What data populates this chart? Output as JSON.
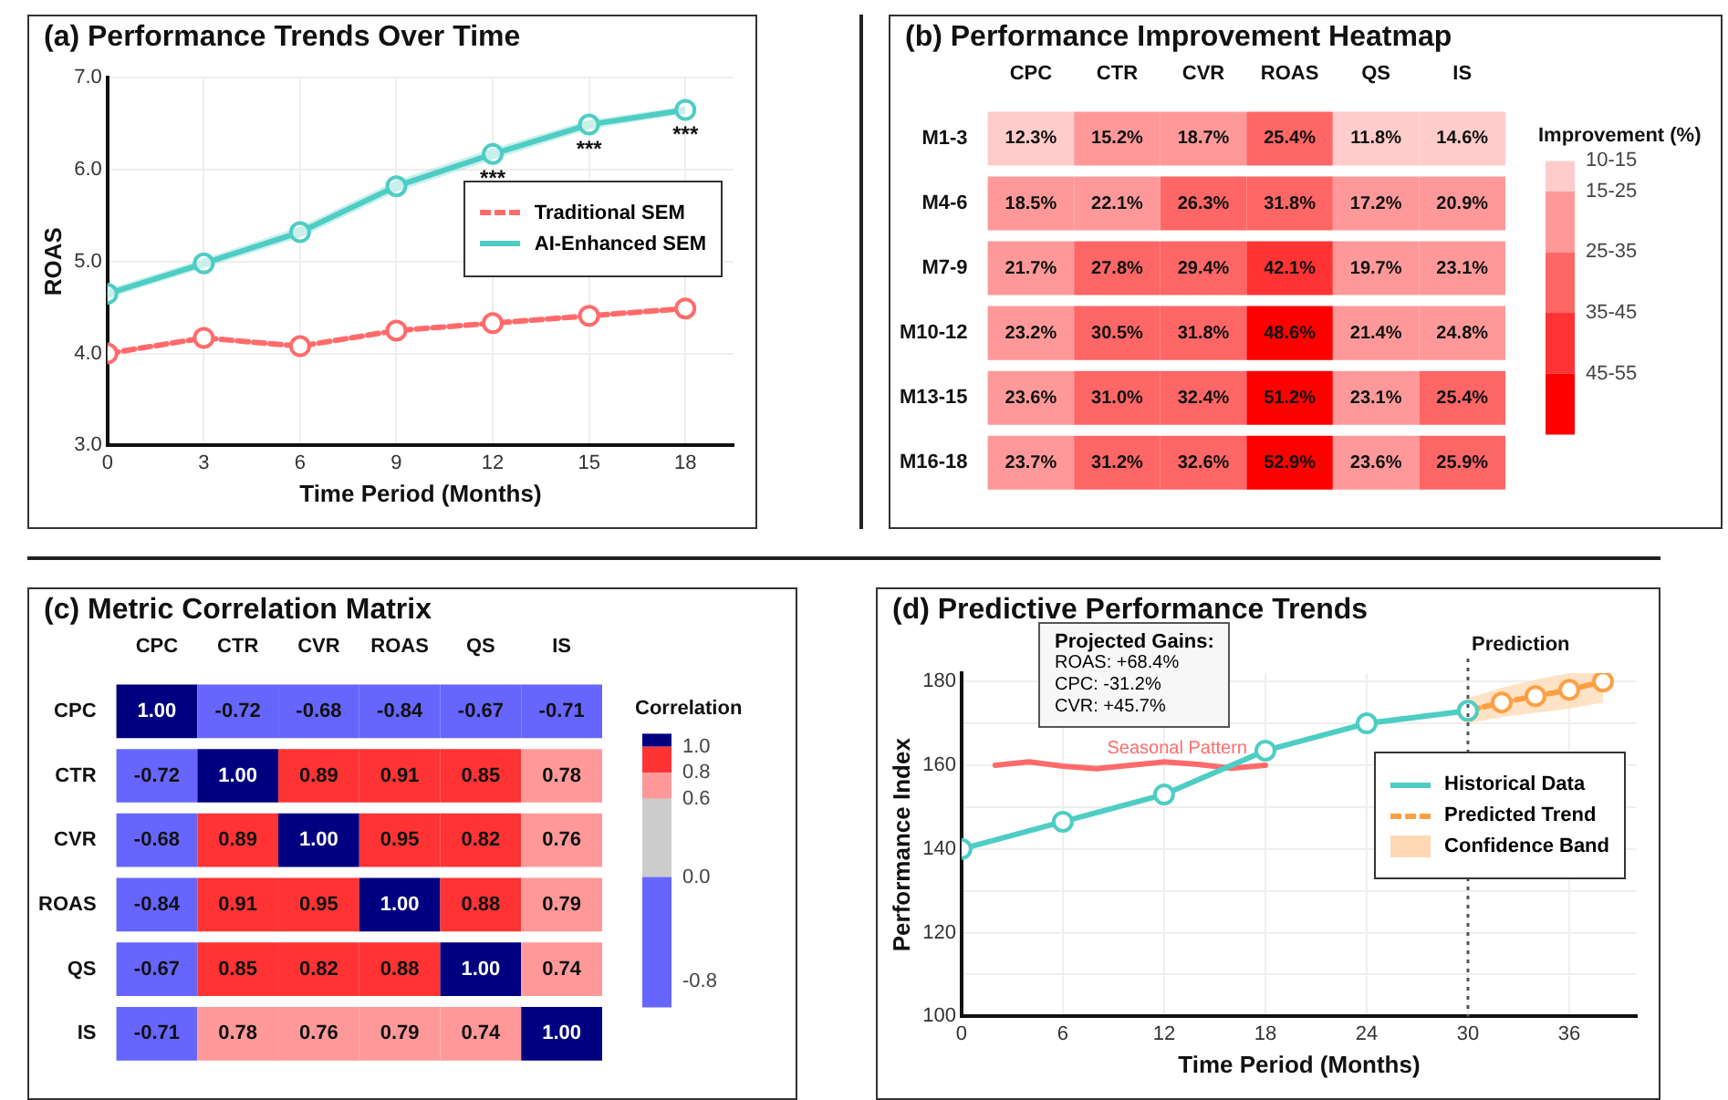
{
  "chart_data": [
    {
      "type": "line",
      "title": "(a) Performance Trends Over Time",
      "xlabel": "Time Period (Months)",
      "ylabel": "ROAS",
      "x": [
        0,
        3,
        6,
        9,
        12,
        15,
        18
      ],
      "xlim": [
        0,
        19.5
      ],
      "xticks": [
        0,
        3,
        6,
        9,
        12,
        15,
        18
      ],
      "ylim": [
        3,
        7
      ],
      "yticks": [
        {
          "value": 3,
          "label": "3.0"
        },
        {
          "value": 4,
          "label": "4.0"
        },
        {
          "value": 5,
          "label": "5.0"
        },
        {
          "value": 6,
          "label": "6.0"
        },
        {
          "value": 7,
          "label": "7.0"
        }
      ],
      "grid": true,
      "legend": "center right",
      "marker": "circle",
      "series": [
        {
          "name": "Traditional SEM",
          "color": "#ff6b6b",
          "line_style": "dashed",
          "values": [
            4.0,
            4.17,
            4.08,
            4.25,
            4.33,
            4.41,
            4.49
          ]
        },
        {
          "name": "AI-Enhanced SEM",
          "color": "#4ecdc4",
          "line_style": "solid",
          "values": [
            4.65,
            4.98,
            5.32,
            5.82,
            6.17,
            6.49,
            6.65
          ],
          "lower": [
            4.6,
            4.93,
            5.26,
            5.76,
            6.11,
            6.44,
            6.61
          ],
          "upper": [
            4.7,
            5.03,
            5.38,
            5.88,
            6.23,
            6.54,
            6.69
          ]
        }
      ],
      "annotations": [
        {
          "text": "***",
          "x": 12,
          "y": 6.17
        },
        {
          "text": "***",
          "x": 15,
          "y": 6.49
        },
        {
          "text": "***",
          "x": 18,
          "y": 6.65
        }
      ]
    },
    {
      "type": "heatmap",
      "title": "(b) Performance Improvement Heatmap",
      "clabel": "Improvement (%)",
      "categories": [
        "CPC",
        "CTR",
        "CVR",
        "ROAS",
        "QS",
        "IS"
      ],
      "y_categories": [
        "M1-3",
        "M4-6",
        "M7-9",
        "M10-12",
        "M13-15",
        "M16-18"
      ],
      "clim": [
        55,
        10
      ],
      "cticks": [
        {
          "value": 10,
          "label": "10-15"
        },
        {
          "value": 15,
          "label": "15-25"
        },
        {
          "value": 25,
          "label": "25-35"
        },
        {
          "value": 35,
          "label": "35-45"
        },
        {
          "value": 45,
          "label": "45-55"
        }
      ],
      "colors": [
        "#ffcccc",
        "#ff9999",
        "#ff6666",
        "#ff3333",
        "#ff0000"
      ],
      "cells": [
        [
          12.3,
          15.2,
          18.7,
          25.4,
          11.8,
          14.6
        ],
        [
          18.5,
          22.1,
          26.3,
          31.8,
          17.2,
          20.9
        ],
        [
          21.7,
          27.8,
          29.4,
          42.1,
          19.7,
          23.1
        ],
        [
          23.2,
          30.5,
          31.8,
          48.6,
          21.4,
          24.8
        ],
        [
          23.6,
          31.0,
          32.4,
          51.2,
          23.1,
          25.4
        ],
        [
          23.7,
          31.2,
          32.6,
          52.9,
          23.6,
          25.9
        ]
      ],
      "cell_labels": [
        [
          "12.3%",
          "15.2%",
          "18.7%",
          "25.4%",
          "11.8%",
          "14.6%"
        ],
        [
          "18.5%",
          "22.1%",
          "26.3%",
          "31.8%",
          "17.2%",
          "20.9%"
        ],
        [
          "21.7%",
          "27.8%",
          "29.4%",
          "42.1%",
          "19.7%",
          "23.1%"
        ],
        [
          "23.2%",
          "30.5%",
          "31.8%",
          "48.6%",
          "21.4%",
          "24.8%"
        ],
        [
          "23.6%",
          "31.0%",
          "32.4%",
          "51.2%",
          "23.1%",
          "25.4%"
        ],
        [
          "23.7%",
          "31.2%",
          "32.6%",
          "52.9%",
          "23.6%",
          "25.9%"
        ]
      ]
    },
    {
      "type": "heatmap",
      "title": "(c) Metric Correlation Matrix",
      "clabel": "Correlation",
      "categories": [
        "CPC",
        "CTR",
        "CVR",
        "ROAS",
        "QS",
        "IS"
      ],
      "y_categories": [
        "CPC",
        "CTR",
        "CVR",
        "ROAS",
        "QS",
        "IS"
      ],
      "clim": [
        -1,
        1.1
      ],
      "cticks": [
        {
          "value": 1,
          "label": "1.0"
        },
        {
          "value": 0.8,
          "label": "0.8"
        },
        {
          "value": 0.6,
          "label": "0.6"
        },
        {
          "value": 0,
          "label": "0.0"
        },
        {
          "value": -0.8,
          "label": "-0.8"
        }
      ],
      "colors": [
        "#000080",
        "#ff3333",
        "#ff9999",
        "#cccccc",
        "#6666ff"
      ],
      "cells": [
        [
          1.0,
          -0.72,
          -0.68,
          -0.84,
          -0.67,
          -0.71
        ],
        [
          -0.72,
          1.0,
          0.89,
          0.91,
          0.85,
          0.78
        ],
        [
          -0.68,
          0.89,
          1.0,
          0.95,
          0.82,
          0.76
        ],
        [
          -0.84,
          0.91,
          0.95,
          1.0,
          0.88,
          0.79
        ],
        [
          -0.67,
          0.85,
          0.82,
          0.88,
          1.0,
          0.74
        ],
        [
          -0.71,
          0.78,
          0.76,
          0.79,
          0.74,
          1.0
        ]
      ],
      "cell_labels": [
        [
          "1.00",
          "-0.72",
          "-0.68",
          "-0.84",
          "-0.67",
          "-0.71"
        ],
        [
          "-0.72",
          "1.00",
          "0.89",
          "0.91",
          "0.85",
          "0.78"
        ],
        [
          "-0.68",
          "0.89",
          "1.00",
          "0.95",
          "0.82",
          "0.76"
        ],
        [
          "-0.84",
          "0.91",
          "0.95",
          "1.00",
          "0.88",
          "0.79"
        ],
        [
          "-0.67",
          "0.85",
          "0.82",
          "0.88",
          "1.00",
          "0.74"
        ],
        [
          "-0.71",
          "0.78",
          "0.76",
          "0.79",
          "0.74",
          "1.00"
        ]
      ]
    },
    {
      "type": "line",
      "title": "(d) Predictive Performance Trends",
      "xlabel": "Time Period (Months)",
      "ylabel": "Performance Index",
      "xlim": [
        0,
        40
      ],
      "xticks": [
        0,
        6,
        12,
        18,
        24,
        30,
        36
      ],
      "ylim": [
        100,
        182
      ],
      "yticks": [
        100,
        {
          "value": 110,
          "label": null
        },
        120,
        {
          "value": 130,
          "label": null
        },
        140,
        {
          "value": 150,
          "label": null
        },
        160,
        {
          "value": 170,
          "label": null
        },
        180
      ],
      "grid": true,
      "legend": "center right",
      "marker": "circle",
      "series": [
        {
          "name": "Historical Data",
          "color": "#4ecdc4",
          "line_style": "solid",
          "x": [
            0,
            6,
            12,
            18,
            24,
            30
          ],
          "values": [
            140,
            146.5,
            153,
            163.5,
            170,
            173
          ]
        },
        {
          "name": "Predicted Trend",
          "color": "#ff9f43",
          "line_style": "dashed",
          "x": [
            30,
            32,
            34,
            36,
            38
          ],
          "values": [
            173,
            175,
            176.5,
            178,
            180
          ]
        },
        {
          "name": "Confidence Band",
          "type": "area",
          "color": "#ffd9b3",
          "x": [
            30,
            32,
            34,
            36,
            38
          ],
          "values": [
            null,
            null,
            null,
            null,
            null
          ],
          "lower": [
            170,
            171.5,
            172.5,
            173.5,
            175
          ],
          "upper": [
            176,
            178.5,
            180.5,
            182,
            182
          ]
        },
        {
          "name": "Seasonal Pattern",
          "type": "line",
          "color": "#ff6b6b",
          "line_style": "solid",
          "marker": "none",
          "x": [
            2,
            4,
            6,
            8,
            10,
            12,
            14,
            16,
            18
          ],
          "values": [
            160,
            160.8,
            159.8,
            159.2,
            160,
            160.8,
            160.2,
            159.3,
            160
          ]
        }
      ],
      "ref_lines": [
        {
          "axis": "x",
          "value": 30,
          "label": "Prediction",
          "line_style": "dotted",
          "color": "#555555"
        }
      ],
      "annotations": [
        "Projected Gains:",
        "ROAS: +68.4%",
        "CPC: -31.2%",
        "CVR: +45.7%"
      ]
    }
  ]
}
